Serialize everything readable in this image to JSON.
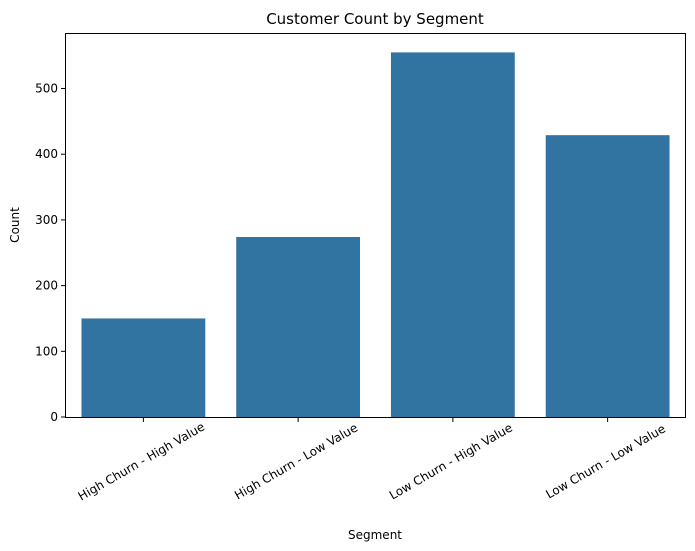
{
  "chart_data": {
    "type": "bar",
    "title": "Customer Count by Segment",
    "xlabel": "Segment",
    "ylabel": "Count",
    "categories": [
      "High Churn - High Value",
      "High Churn - Low Value",
      "Low Churn - High Value",
      "Low Churn - Low Value"
    ],
    "values": [
      150,
      274,
      555,
      429
    ],
    "ylim": [
      0,
      583
    ],
    "yticks": [
      0,
      100,
      200,
      300,
      400,
      500
    ],
    "bar_color": "#3274a1",
    "grid": false,
    "legend": "none"
  }
}
